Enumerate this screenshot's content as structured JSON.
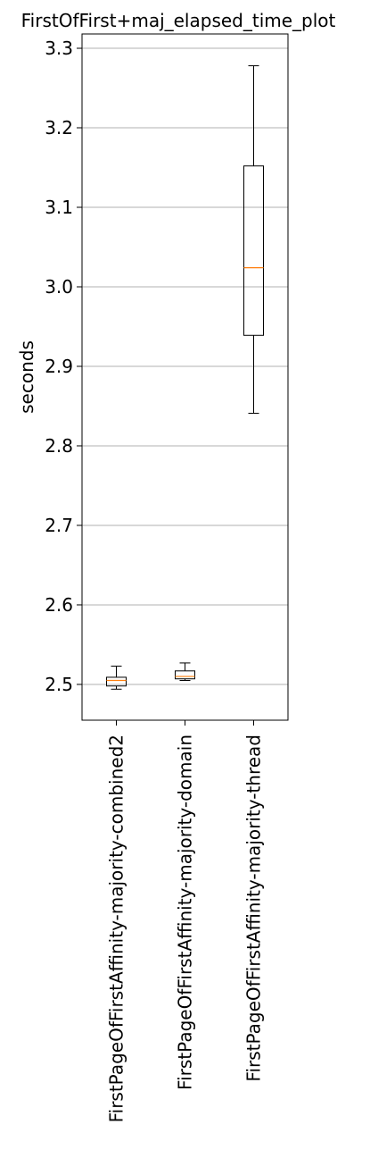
{
  "chart_data": {
    "type": "box",
    "title": "FirstOfFirst+maj_elapsed_time_plot",
    "xlabel": "",
    "ylabel": "seconds",
    "ylim": [
      2.455,
      3.318
    ],
    "yticks": [
      2.5,
      2.6,
      2.7,
      2.8,
      2.9,
      3.0,
      3.1,
      3.2,
      3.3
    ],
    "ytick_labels": [
      "2.5",
      "2.6",
      "2.7",
      "2.8",
      "2.9",
      "3.0",
      "3.1",
      "3.2",
      "3.3"
    ],
    "grid": "y",
    "categories": [
      "FirstPageOfFirstAffinity-majority-combined2",
      "FirstPageOfFirstAffinity-majority-domain",
      "FirstPageOfFirstAffinity-majority-thread"
    ],
    "boxes": [
      {
        "whisker_low": 2.494,
        "q1": 2.498,
        "median": 2.505,
        "q3": 2.509,
        "whisker_high": 2.523
      },
      {
        "whisker_low": 2.505,
        "q1": 2.507,
        "median": 2.51,
        "q3": 2.517,
        "whisker_high": 2.527
      },
      {
        "whisker_low": 2.841,
        "q1": 2.939,
        "median": 3.024,
        "q3": 3.152,
        "whisker_high": 3.278
      }
    ],
    "colors": {
      "box": "#000000",
      "median": "#ff7f0e",
      "grid": "#b0b0b0"
    }
  }
}
